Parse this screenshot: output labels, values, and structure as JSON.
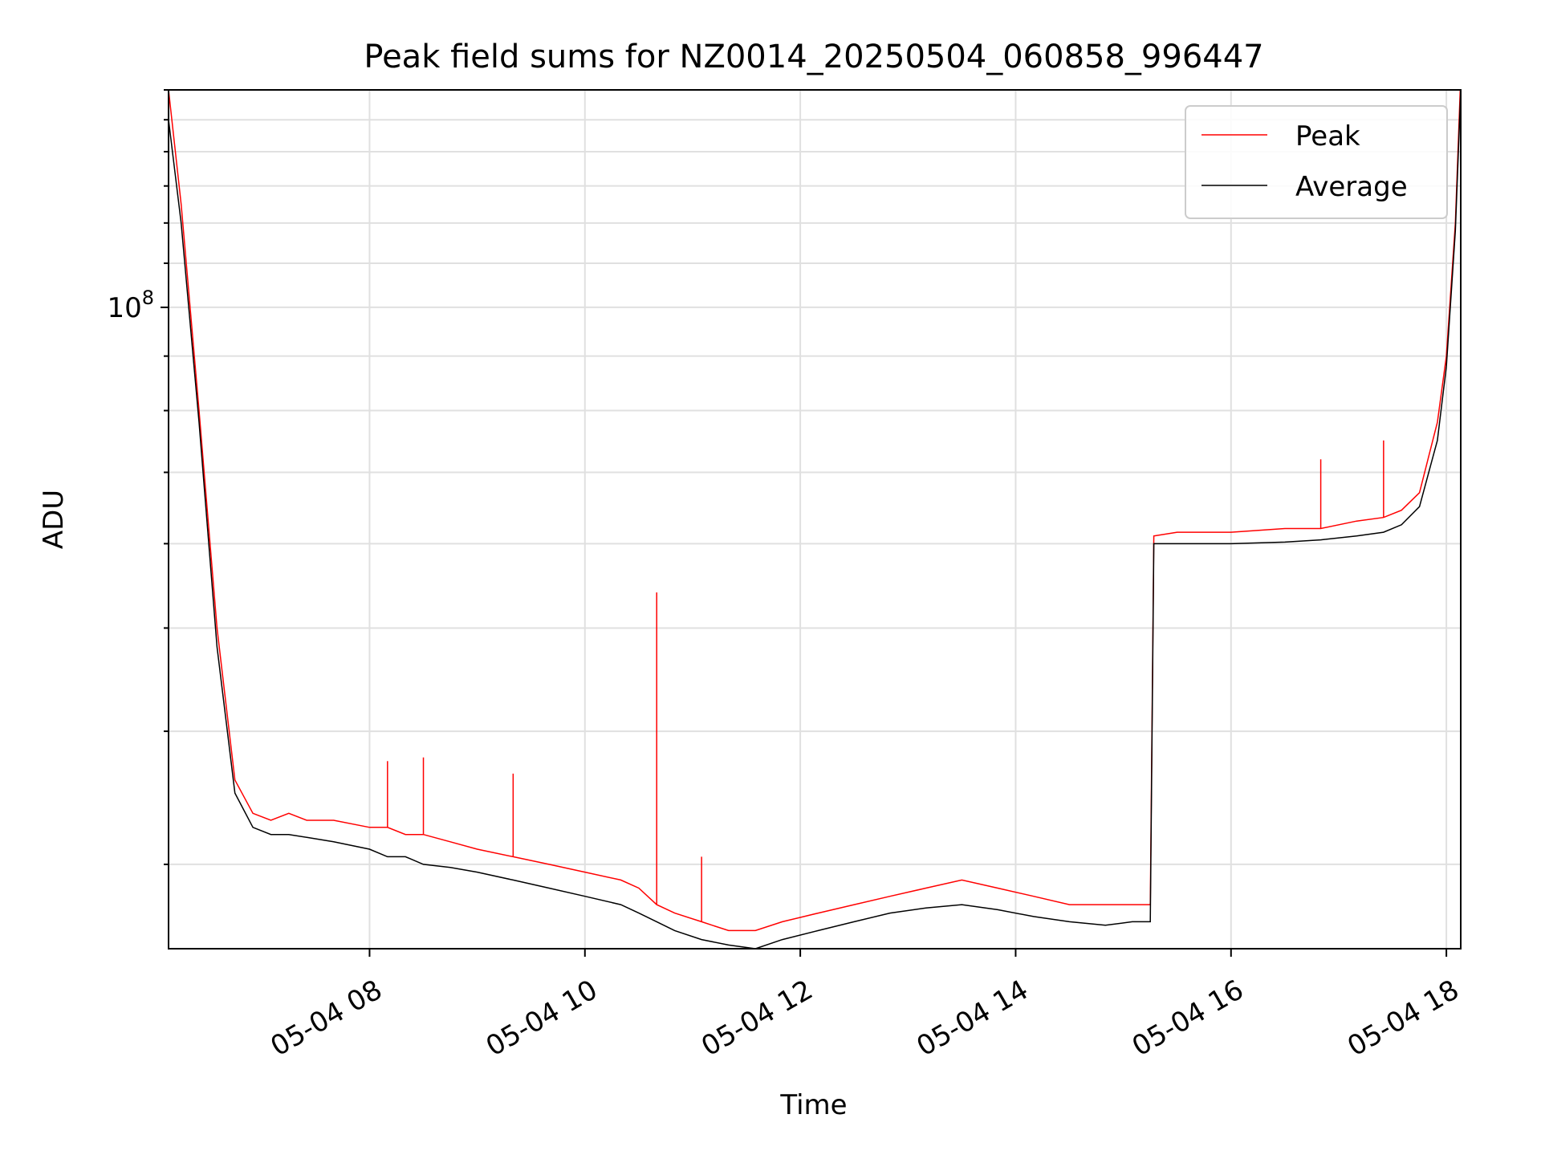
{
  "chart_data": {
    "type": "line",
    "title": "Peak field sums for NZ0014_20250504_060858_996447",
    "xlabel": "Time",
    "ylabel": "ADU",
    "y_scale": "log",
    "ylim": [
      25000000,
      160000000
    ],
    "x_range": [
      "2025-05-04 06:08",
      "2025-05-04 18:08"
    ],
    "x_ticks": [
      {
        "time": "2025-05-04 08:00",
        "label": "05-04 08"
      },
      {
        "time": "2025-05-04 10:00",
        "label": "05-04 10"
      },
      {
        "time": "2025-05-04 12:00",
        "label": "05-04 12"
      },
      {
        "time": "2025-05-04 14:00",
        "label": "05-04 14"
      },
      {
        "time": "2025-05-04 16:00",
        "label": "05-04 16"
      },
      {
        "time": "2025-05-04 18:00",
        "label": "05-04 18"
      }
    ],
    "y_ticks": [
      {
        "value": 100000000,
        "label_base": "10",
        "label_exp": "8"
      }
    ],
    "grid": true,
    "legend_position": "top-right",
    "series": [
      {
        "name": "Peak",
        "color": "#ff0000",
        "x": [
          "2025-05-04 06:08",
          "2025-05-04 06:15",
          "2025-05-04 06:25",
          "2025-05-04 06:35",
          "2025-05-04 06:45",
          "2025-05-04 06:55",
          "2025-05-04 07:05",
          "2025-05-04 07:15",
          "2025-05-04 07:25",
          "2025-05-04 07:40",
          "2025-05-04 08:00",
          "2025-05-04 08:10",
          "2025-05-04 08:20",
          "2025-05-04 08:30",
          "2025-05-04 08:45",
          "2025-05-04 09:00",
          "2025-05-04 09:20",
          "2025-05-04 09:40",
          "2025-05-04 10:00",
          "2025-05-04 10:20",
          "2025-05-04 10:30",
          "2025-05-04 10:40",
          "2025-05-04 10:50",
          "2025-05-04 11:05",
          "2025-05-04 11:20",
          "2025-05-04 11:35",
          "2025-05-04 11:50",
          "2025-05-04 12:10",
          "2025-05-04 12:30",
          "2025-05-04 12:50",
          "2025-05-04 13:10",
          "2025-05-04 13:30",
          "2025-05-04 13:50",
          "2025-05-04 14:10",
          "2025-05-04 14:30",
          "2025-05-04 14:50",
          "2025-05-04 15:05",
          "2025-05-04 15:15",
          "2025-05-04 15:17",
          "2025-05-04 15:30",
          "2025-05-04 16:00",
          "2025-05-04 16:30",
          "2025-05-04 16:50",
          "2025-05-04 17:10",
          "2025-05-04 17:25",
          "2025-05-04 17:35",
          "2025-05-04 17:45",
          "2025-05-04 17:55",
          "2025-05-04 18:00",
          "2025-05-04 18:05",
          "2025-05-04 18:08"
        ],
        "y": [
          160000000,
          125000000,
          80000000,
          50000000,
          36000000,
          33500000,
          33000000,
          33500000,
          33000000,
          33000000,
          32500000,
          32500000,
          32000000,
          32000000,
          31500000,
          31000000,
          30500000,
          30000000,
          29500000,
          29000000,
          28500000,
          27500000,
          27000000,
          26500000,
          26000000,
          26000000,
          26500000,
          27000000,
          27500000,
          28000000,
          28500000,
          29000000,
          28500000,
          28000000,
          27500000,
          27500000,
          27500000,
          27500000,
          61000000,
          61500000,
          61500000,
          62000000,
          62000000,
          63000000,
          63500000,
          64500000,
          67000000,
          78000000,
          90000000,
          120000000,
          165000000
        ],
        "spikes": [
          {
            "x": "2025-05-04 08:10",
            "y": 37500000
          },
          {
            "x": "2025-05-04 08:30",
            "y": 37800000
          },
          {
            "x": "2025-05-04 09:20",
            "y": 36500000
          },
          {
            "x": "2025-05-04 10:40",
            "y": 54000000
          },
          {
            "x": "2025-05-04 11:05",
            "y": 30500000
          },
          {
            "x": "2025-05-04 16:50",
            "y": 72000000
          },
          {
            "x": "2025-05-04 17:25",
            "y": 75000000
          }
        ]
      },
      {
        "name": "Average",
        "color": "#000000",
        "x": [
          "2025-05-04 06:08",
          "2025-05-04 06:15",
          "2025-05-04 06:25",
          "2025-05-04 06:35",
          "2025-05-04 06:45",
          "2025-05-04 06:55",
          "2025-05-04 07:05",
          "2025-05-04 07:15",
          "2025-05-04 07:25",
          "2025-05-04 07:40",
          "2025-05-04 08:00",
          "2025-05-04 08:10",
          "2025-05-04 08:20",
          "2025-05-04 08:30",
          "2025-05-04 08:45",
          "2025-05-04 09:00",
          "2025-05-04 09:20",
          "2025-05-04 09:40",
          "2025-05-04 10:00",
          "2025-05-04 10:20",
          "2025-05-04 10:30",
          "2025-05-04 10:40",
          "2025-05-04 10:50",
          "2025-05-04 11:05",
          "2025-05-04 11:20",
          "2025-05-04 11:35",
          "2025-05-04 11:50",
          "2025-05-04 12:10",
          "2025-05-04 12:30",
          "2025-05-04 12:50",
          "2025-05-04 13:10",
          "2025-05-04 13:30",
          "2025-05-04 13:50",
          "2025-05-04 14:10",
          "2025-05-04 14:30",
          "2025-05-04 14:50",
          "2025-05-04 15:05",
          "2025-05-04 15:15",
          "2025-05-04 15:17",
          "2025-05-04 15:30",
          "2025-05-04 16:00",
          "2025-05-04 16:30",
          "2025-05-04 16:50",
          "2025-05-04 17:10",
          "2025-05-04 17:25",
          "2025-05-04 17:35",
          "2025-05-04 17:45",
          "2025-05-04 17:55",
          "2025-05-04 18:00",
          "2025-05-04 18:05",
          "2025-05-04 18:08"
        ],
        "y": [
          150000000,
          120000000,
          78000000,
          48000000,
          35000000,
          32500000,
          32000000,
          32000000,
          31800000,
          31500000,
          31000000,
          30500000,
          30500000,
          30000000,
          29800000,
          29500000,
          29000000,
          28500000,
          28000000,
          27500000,
          27000000,
          26500000,
          26000000,
          25500000,
          25200000,
          25000000,
          25500000,
          26000000,
          26500000,
          27000000,
          27300000,
          27500000,
          27200000,
          26800000,
          26500000,
          26300000,
          26500000,
          26500000,
          60000000,
          60000000,
          60000000,
          60200000,
          60500000,
          61000000,
          61500000,
          62500000,
          65000000,
          75000000,
          88000000,
          118000000,
          160000000
        ]
      }
    ]
  }
}
